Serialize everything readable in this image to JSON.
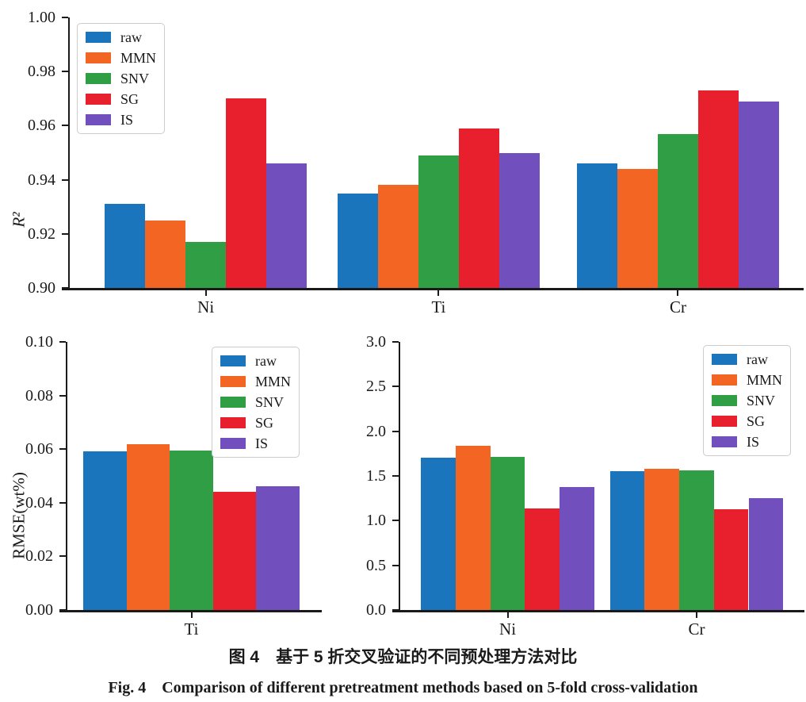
{
  "series_colors": {
    "raw": "#1b75bc",
    "MMN": "#f26522",
    "SNV": "#2f9e44",
    "SG": "#e8202d",
    "IS": "#7150bd"
  },
  "legend_entries": [
    "raw",
    "MMN",
    "SNV",
    "SG",
    "IS"
  ],
  "chart_data": [
    {
      "id": "r2",
      "type": "bar",
      "title": "",
      "xlabel": "",
      "ylabel": "R²",
      "categories": [
        "Ni",
        "Ti",
        "Cr"
      ],
      "series": [
        {
          "name": "raw",
          "values": [
            0.931,
            0.935,
            0.946
          ]
        },
        {
          "name": "MMN",
          "values": [
            0.925,
            0.938,
            0.944
          ]
        },
        {
          "name": "SNV",
          "values": [
            0.917,
            0.949,
            0.957
          ]
        },
        {
          "name": "SG",
          "values": [
            0.97,
            0.959,
            0.973
          ]
        },
        {
          "name": "IS",
          "values": [
            0.946,
            0.95,
            0.969
          ]
        }
      ],
      "ylim": [
        0.9,
        1.0
      ],
      "ytick_step": 0.02,
      "ytick_decimals": 2,
      "grid": false,
      "legend_position": "top-left"
    },
    {
      "id": "rmse_ti",
      "type": "bar",
      "title": "",
      "xlabel": "",
      "ylabel": "RMSE(wt%)",
      "categories": [
        "Ti"
      ],
      "series": [
        {
          "name": "raw",
          "values": [
            0.0593
          ]
        },
        {
          "name": "MMN",
          "values": [
            0.0617
          ]
        },
        {
          "name": "SNV",
          "values": [
            0.0595
          ]
        },
        {
          "name": "SG",
          "values": [
            0.044
          ]
        },
        {
          "name": "IS",
          "values": [
            0.0463
          ]
        }
      ],
      "ylim": [
        0.0,
        0.1
      ],
      "ytick_step": 0.02,
      "ytick_decimals": 2,
      "grid": false,
      "legend_position": "top-right"
    },
    {
      "id": "rmse_nicr",
      "type": "bar",
      "title": "",
      "xlabel": "",
      "ylabel": "",
      "categories": [
        "Ni",
        "Cr"
      ],
      "series": [
        {
          "name": "raw",
          "values": [
            1.7,
            1.55
          ]
        },
        {
          "name": "MMN",
          "values": [
            1.84,
            1.58
          ]
        },
        {
          "name": "SNV",
          "values": [
            1.71,
            1.56
          ]
        },
        {
          "name": "SG",
          "values": [
            1.14,
            1.13
          ]
        },
        {
          "name": "IS",
          "values": [
            1.38,
            1.25
          ]
        }
      ],
      "ylim": [
        0.0,
        3.0
      ],
      "ytick_step": 0.5,
      "ytick_decimals": 1,
      "grid": false,
      "legend_position": "top-right"
    }
  ],
  "caption_zh": "图 4　基于 5 折交叉验证的不同预处理方法对比",
  "caption_en": "Fig. 4　Comparison of different pretreatment methods based on 5-fold cross-validation"
}
